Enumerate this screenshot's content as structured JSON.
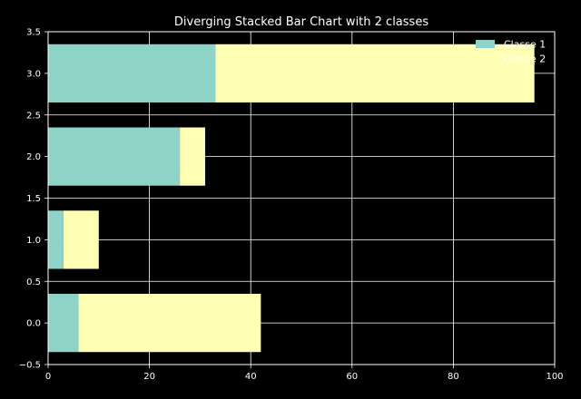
{
  "chart_data": {
    "type": "bar",
    "orientation": "horizontal",
    "stacked": true,
    "title": "Diverging Stacked Bar Chart with 2 classes",
    "xlabel": "",
    "ylabel": "",
    "xlim": [
      0,
      100
    ],
    "ylim": [
      -0.5,
      3.5
    ],
    "xticks": [
      "0",
      "20",
      "40",
      "60",
      "80",
      "100"
    ],
    "yticks": [
      "−0.5",
      "0.0",
      "0.5",
      "1.0",
      "1.5",
      "2.0",
      "2.5",
      "3.0",
      "3.5"
    ],
    "grid": true,
    "legend_position": "top-right",
    "categories": [
      0,
      1,
      2,
      3
    ],
    "series": [
      {
        "name": "Classe 1",
        "color": "#8dd3c7",
        "values": [
          6,
          3,
          26,
          33
        ]
      },
      {
        "name": "Classe 2",
        "color": "#feffb3",
        "values": [
          36,
          7,
          5,
          63
        ]
      }
    ]
  }
}
